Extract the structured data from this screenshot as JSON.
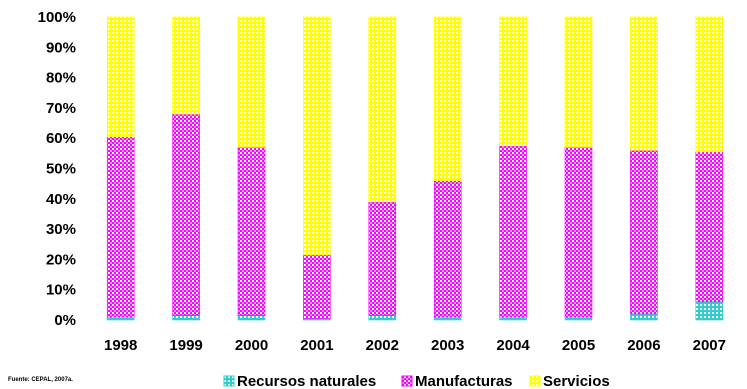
{
  "chart_data": {
    "type": "bar",
    "stacked": true,
    "categories": [
      "1998",
      "1999",
      "2000",
      "2001",
      "2002",
      "2003",
      "2004",
      "2005",
      "2006",
      "2007"
    ],
    "series": [
      {
        "name": "Recursos naturales",
        "values": [
          1,
          1.5,
          1.5,
          0.5,
          1.5,
          1,
          1,
          1,
          2,
          6
        ],
        "color": "#33cccc"
      },
      {
        "name": "Manufacturas",
        "values": [
          59.5,
          66.5,
          55.5,
          21,
          37.5,
          45,
          56.5,
          56,
          54,
          49.5
        ],
        "color": "#ff00ff"
      },
      {
        "name": "Servicios",
        "values": [
          39.5,
          32,
          43,
          78.5,
          61,
          54,
          42.5,
          43,
          44,
          44.5
        ],
        "color": "#ffff00"
      }
    ],
    "yticks": [
      "0%",
      "10%",
      "20%",
      "30%",
      "40%",
      "50%",
      "60%",
      "70%",
      "80%",
      "90%",
      "100%"
    ],
    "ylim": [
      0,
      100
    ],
    "legend_position": "bottom",
    "grid": false
  },
  "source_note": "Fuente: CEPAL, 2007a."
}
